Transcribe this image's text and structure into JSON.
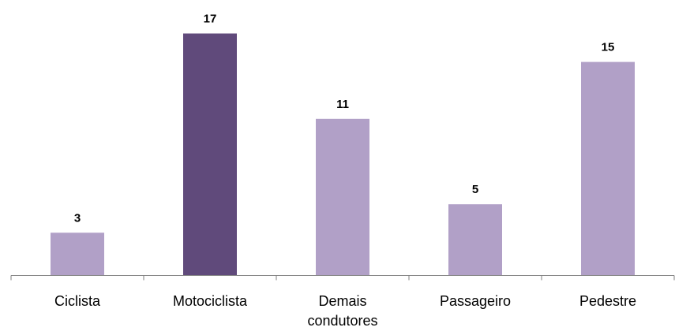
{
  "chart_data": {
    "type": "bar",
    "title": "",
    "xlabel": "",
    "ylabel": "",
    "categories": [
      "Ciclista",
      "Motociclista",
      "Demais condutores",
      "Passageiro",
      "Pedestre"
    ],
    "category_lines": [
      [
        "Ciclista"
      ],
      [
        "Motociclista"
      ],
      [
        "Demais",
        "condutores"
      ],
      [
        "Passageiro"
      ],
      [
        "Pedestre"
      ]
    ],
    "values": [
      3,
      17,
      11,
      5,
      15
    ],
    "ylim": [
      0,
      17
    ],
    "grid": false,
    "legend": "none",
    "data_labels": true,
    "colors": {
      "default_bar": "#b1a0c7",
      "highlight_bar": "#604a7b",
      "axis": "#7f7f7f"
    },
    "highlight_index": 1
  }
}
